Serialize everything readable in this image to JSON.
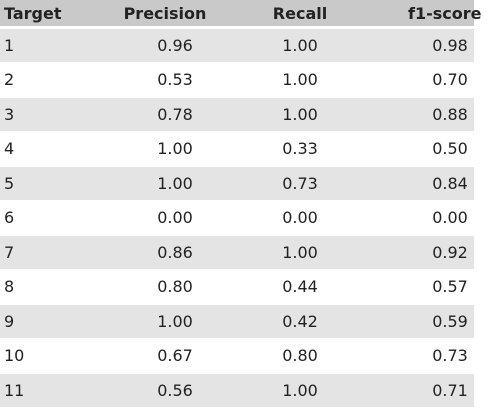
{
  "table": {
    "header": [
      "Target",
      "Precision",
      "Recall",
      "f1-score"
    ],
    "rows": [
      [
        "1",
        "0.96",
        "1.00",
        "0.98"
      ],
      [
        "2",
        "0.53",
        "1.00",
        "0.70"
      ],
      [
        "3",
        "0.78",
        "1.00",
        "0.88"
      ],
      [
        "4",
        "1.00",
        "0.33",
        "0.50"
      ],
      [
        "5",
        "1.00",
        "0.73",
        "0.84"
      ],
      [
        "6",
        "0.00",
        "0.00",
        "0.00"
      ],
      [
        "7",
        "0.86",
        "1.00",
        "0.92"
      ],
      [
        "8",
        "0.80",
        "0.44",
        "0.57"
      ],
      [
        "9",
        "1.00",
        "0.42",
        "0.59"
      ],
      [
        "10",
        "0.67",
        "0.80",
        "0.73"
      ],
      [
        "11",
        "0.56",
        "1.00",
        "0.71"
      ]
    ]
  }
}
